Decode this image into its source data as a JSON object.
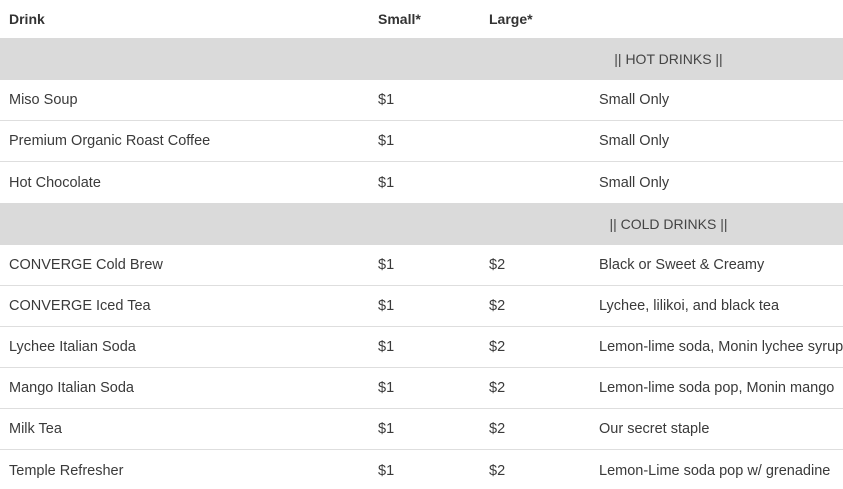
{
  "header": {
    "drink": "Drink",
    "small": "Small*",
    "large": "Large*"
  },
  "sections": [
    {
      "title": "|| HOT DRINKS ||",
      "items": [
        {
          "drink": "Miso Soup",
          "small": "$1",
          "large": "",
          "note": "Small Only"
        },
        {
          "drink": "Premium Organic Roast Coffee",
          "small": "$1",
          "large": "",
          "note": "Small Only"
        },
        {
          "drink": "Hot Chocolate",
          "small": "$1",
          "large": "",
          "note": "Small Only"
        }
      ]
    },
    {
      "title": "|| COLD DRINKS ||",
      "items": [
        {
          "drink": "CONVERGE Cold Brew",
          "small": "$1",
          "large": "$2",
          "note": "Black or Sweet & Creamy"
        },
        {
          "drink": "CONVERGE Iced Tea",
          "small": "$1",
          "large": "$2",
          "note": "Lychee, lilikoi, and black tea"
        },
        {
          "drink": "Lychee Italian Soda",
          "small": "$1",
          "large": "$2",
          "note": "Lemon-lime soda, Monin lychee syrup"
        },
        {
          "drink": "Mango Italian Soda",
          "small": "$1",
          "large": "$2",
          "note": "Lemon-lime soda pop, Monin mango"
        },
        {
          "drink": "Milk Tea",
          "small": "$1",
          "large": "$2",
          "note": "Our secret staple"
        },
        {
          "drink": "Temple Refresher",
          "small": "$1",
          "large": "$2",
          "note": "Lemon-Lime soda pop w/ grenadine"
        }
      ]
    }
  ]
}
